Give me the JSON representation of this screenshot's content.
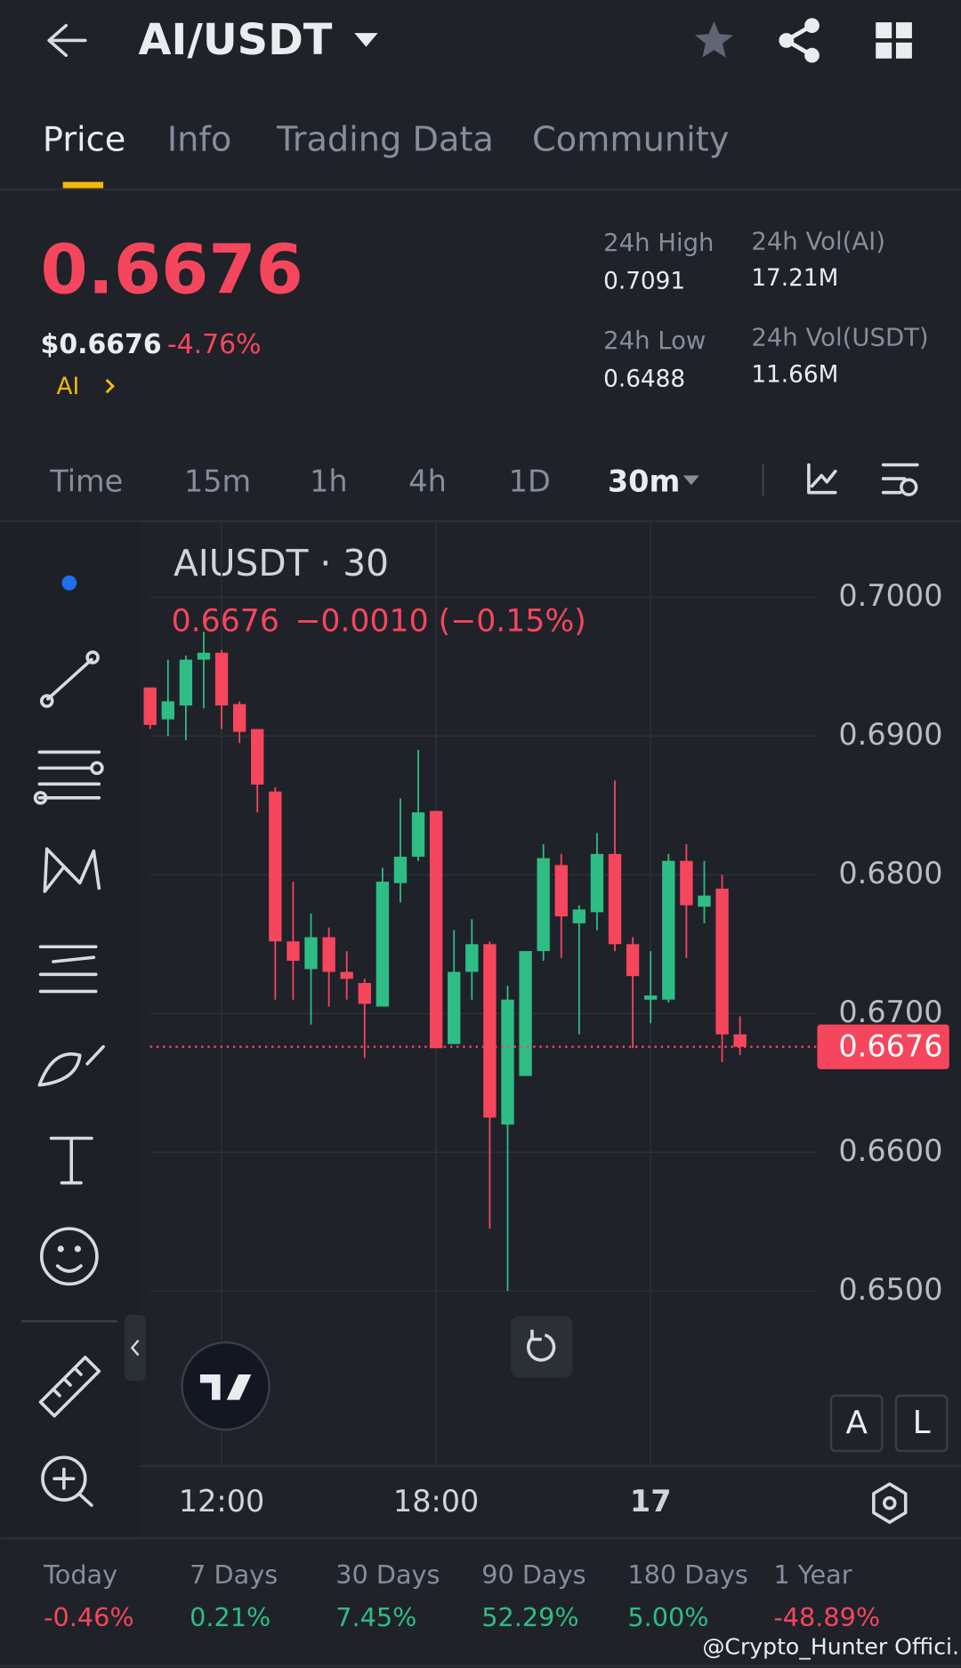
{
  "header": {
    "title": "AI/USDT"
  },
  "tabs": [
    "Price",
    "Info",
    "Trading Data",
    "Community"
  ],
  "ticker": {
    "price": "0.6676",
    "usd_price": "$0.6676",
    "change": "-4.76%",
    "base": "AI"
  },
  "stats": [
    {
      "label": "24h High",
      "value": "0.7091"
    },
    {
      "label": "24h Low",
      "value": "0.6488"
    },
    {
      "label": "24h Vol(AI)",
      "value": "17.21M"
    },
    {
      "label": "24h Vol(USDT)",
      "value": "11.66M"
    }
  ],
  "intervals": [
    "Time",
    "15m",
    "1h",
    "4h",
    "1D",
    "30m"
  ],
  "chart_data": {
    "type": "candlestick",
    "title": "AIUSDT · 30",
    "legend_price": "0.6676",
    "legend_change": "−0.0010 (−0.15%)",
    "up_color": "#2ebd85",
    "down_color": "#f6465d",
    "categories": [
      null,
      null,
      null,
      null,
      "12:00",
      null,
      null,
      null,
      null,
      null,
      null,
      null,
      null,
      null,
      null,
      null,
      "18:00",
      null,
      null,
      null,
      null,
      null,
      null,
      null,
      null,
      null,
      null,
      null,
      "17",
      null,
      null,
      null,
      null,
      null
    ],
    "open": [
      0.6935,
      0.6912,
      0.6922,
      0.6955,
      0.696,
      0.6923,
      0.6905,
      0.686,
      0.6752,
      0.6732,
      0.6755,
      0.673,
      0.6722,
      0.6705,
      0.6794,
      0.6813,
      0.6846,
      0.6678,
      0.673,
      0.675,
      0.662,
      0.6655,
      0.6745,
      0.6807,
      0.6765,
      0.6773,
      0.6815,
      0.675,
      0.671,
      0.671,
      0.681,
      0.6777,
      0.679,
      0.6685
    ],
    "high": [
      0.6935,
      0.6955,
      0.6958,
      0.6975,
      0.6962,
      0.6925,
      0.6905,
      0.6863,
      0.6795,
      0.6772,
      0.6762,
      0.6745,
      0.6725,
      0.6805,
      0.6855,
      0.689,
      0.6846,
      0.676,
      0.6768,
      0.6752,
      0.672,
      0.6745,
      0.6822,
      0.6815,
      0.6778,
      0.683,
      0.6868,
      0.6755,
      0.6745,
      0.6815,
      0.6822,
      0.681,
      0.68,
      0.6698
    ],
    "low": [
      0.6905,
      0.69,
      0.6897,
      0.692,
      0.6905,
      0.6895,
      0.6845,
      0.671,
      0.671,
      0.6692,
      0.6705,
      0.671,
      0.6668,
      0.6705,
      0.678,
      0.681,
      0.6675,
      0.6678,
      0.671,
      0.6545,
      0.65,
      0.6655,
      0.6738,
      0.674,
      0.6685,
      0.676,
      0.6745,
      0.6675,
      0.6693,
      0.6708,
      0.674,
      0.6765,
      0.6665,
      0.667
    ],
    "close": [
      0.6908,
      0.6925,
      0.6955,
      0.696,
      0.6922,
      0.6903,
      0.6865,
      0.6752,
      0.6738,
      0.6755,
      0.673,
      0.6725,
      0.6707,
      0.6795,
      0.6813,
      0.6845,
      0.6675,
      0.673,
      0.675,
      0.6625,
      0.671,
      0.6745,
      0.6812,
      0.677,
      0.6775,
      0.6815,
      0.675,
      0.6727,
      0.6713,
      0.681,
      0.6778,
      0.6785,
      0.6685,
      0.6676
    ],
    "ylim": [
      0.6374,
      0.7054
    ],
    "yticks": [
      {
        "value": 0.7,
        "label": "0.7000"
      },
      {
        "value": 0.69,
        "label": "0.6900"
      },
      {
        "value": 0.68,
        "label": "0.6800"
      },
      {
        "value": 0.67,
        "label": "0.6700"
      },
      {
        "value": 0.66,
        "label": "0.6600"
      },
      {
        "value": 0.65,
        "label": "0.6500"
      }
    ],
    "last_price": 0.6676,
    "grid": true
  },
  "chart_buttons": [
    "A",
    "L"
  ],
  "performance": [
    {
      "label": "Today",
      "value": "-0.46%",
      "color": "#f6465d"
    },
    {
      "label": "7 Days",
      "value": "0.21%",
      "color": "#2ebd85"
    },
    {
      "label": "30 Days",
      "value": "7.45%",
      "color": "#2ebd85"
    },
    {
      "label": "90 Days",
      "value": "52.29%",
      "color": "#2ebd85"
    },
    {
      "label": "180 Days",
      "value": "5.00%",
      "color": "#2ebd85"
    },
    {
      "label": "1 Year",
      "value": "-48.89%",
      "color": "#f6465d"
    }
  ],
  "watermark": "@Crypto_Hunter Offici..."
}
